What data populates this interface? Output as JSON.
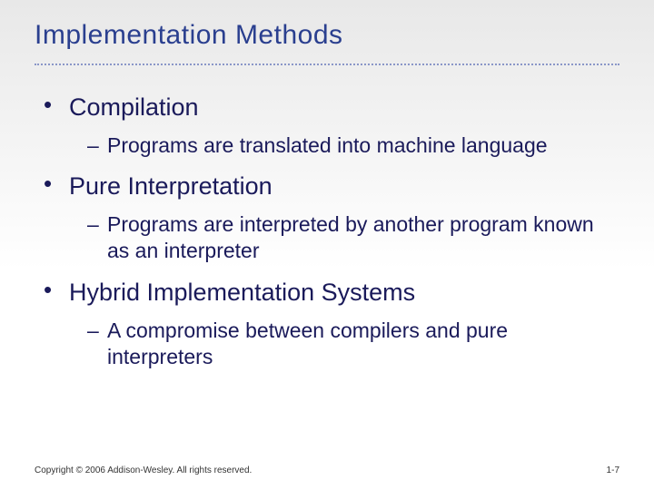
{
  "title": {
    "text": "Implementation Methods",
    "color": "#2a3f8f",
    "fontsize": 30
  },
  "divider": {
    "color": "#8a96c8"
  },
  "body": {
    "color": "#1a1a5a",
    "l1_fontsize": 27,
    "l2_fontsize": 23,
    "items": [
      {
        "label": "Compilation",
        "sub": "Programs are translated into machine language"
      },
      {
        "label": "Pure Interpretation",
        "sub": "Programs are interpreted by another program known as an interpreter"
      },
      {
        "label": "Hybrid Implementation Systems",
        "sub": "A compromise between compilers and pure interpreters"
      }
    ]
  },
  "footer": {
    "copyright": "Copyright © 2006 Addison-Wesley. All rights reserved.",
    "page": "1-7",
    "color": "#333333"
  },
  "background": {
    "gradient_top": "#e8e8e8",
    "gradient_bottom": "#ffffff"
  }
}
